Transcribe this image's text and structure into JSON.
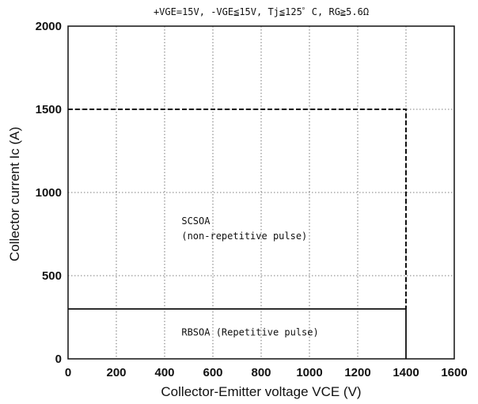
{
  "chart_data": {
    "type": "line",
    "title": "+VGE=15V, -VGE≦15V, Tj≦125゜C, RG≧5.6Ω",
    "xlabel": "Collector-Emitter voltage   VCE (V)",
    "ylabel": "Collector current   Ic (A)",
    "xlim": [
      0,
      1600
    ],
    "ylim": [
      0,
      2000
    ],
    "xticks": [
      "0",
      "200",
      "400",
      "600",
      "800",
      "1000",
      "1200",
      "1400",
      "1600"
    ],
    "yticks": [
      "0",
      "500",
      "1000",
      "1500",
      "2000"
    ],
    "grid": true,
    "series": [
      {
        "name": "SCSOA",
        "style": "dashed",
        "points": [
          {
            "x": 0,
            "y": 1500
          },
          {
            "x": 1400,
            "y": 1500
          },
          {
            "x": 1400,
            "y": 300
          }
        ]
      },
      {
        "name": "RBSOA",
        "style": "solid",
        "points": [
          {
            "x": 0,
            "y": 300
          },
          {
            "x": 1400,
            "y": 300
          },
          {
            "x": 1400,
            "y": 0
          }
        ]
      }
    ],
    "annotations": [
      {
        "line1": "SCSOA",
        "line2": "(non-repetitive pulse)",
        "x": 470,
        "y": 810
      },
      {
        "line1": "RBSOA (Repetitive pulse)",
        "x": 470,
        "y": 140
      }
    ]
  }
}
